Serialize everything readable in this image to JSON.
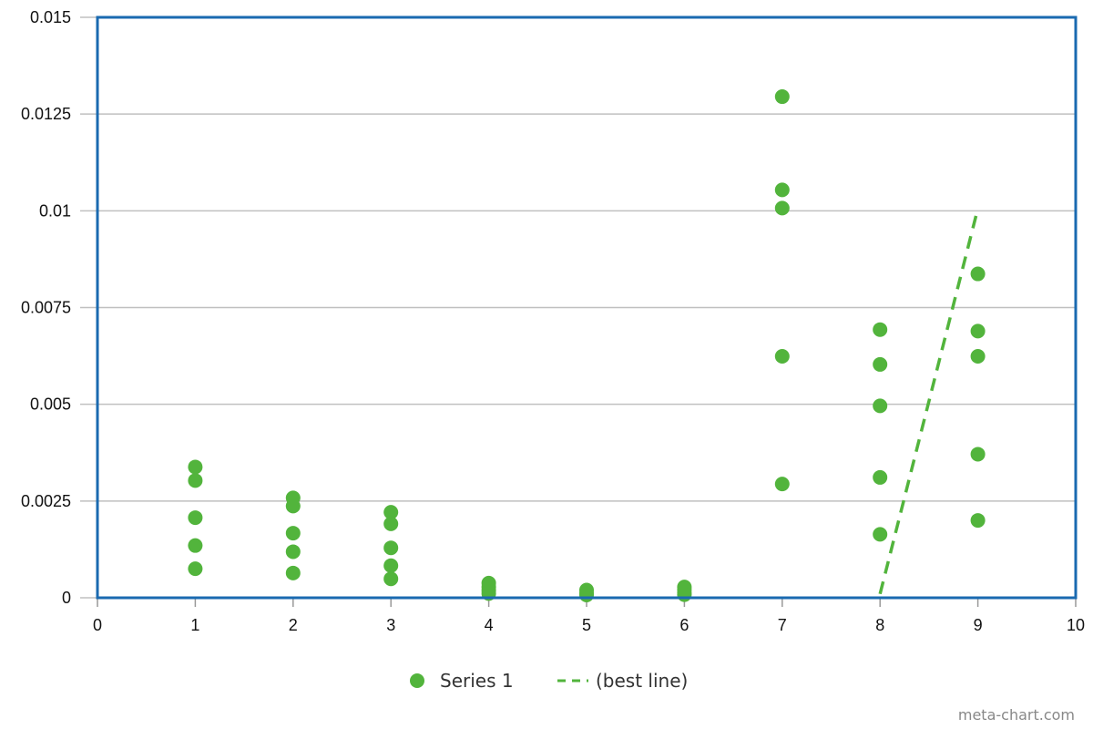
{
  "chart_data": {
    "type": "scatter",
    "title": "",
    "xlabel": "",
    "ylabel": "",
    "xlim": [
      0,
      10
    ],
    "ylim": [
      0,
      0.015
    ],
    "x_ticks": [
      0,
      1,
      2,
      3,
      4,
      5,
      6,
      7,
      8,
      9,
      10
    ],
    "x_tick_labels": [
      "0",
      "1",
      "2",
      "3",
      "4",
      "5",
      "6",
      "7",
      "8",
      "9",
      "10"
    ],
    "y_ticks": [
      0,
      0.0025,
      0.005,
      0.0075,
      0.01,
      0.0125,
      0.015
    ],
    "y_tick_labels": [
      "0",
      "0.0025",
      "0.005",
      "0.0075",
      "0.01",
      "0.0125",
      "0.015"
    ],
    "grid": true,
    "legend_position": "bottom-center",
    "series": [
      {
        "name": "Series 1",
        "kind": "scatter",
        "color": "#52b43c",
        "points": [
          [
            1,
            0.00338
          ],
          [
            1,
            0.00303
          ],
          [
            1,
            0.00207
          ],
          [
            1,
            0.00135
          ],
          [
            1,
            0.00075
          ],
          [
            2,
            0.00258
          ],
          [
            2,
            0.00237
          ],
          [
            2,
            0.00167
          ],
          [
            2,
            0.00119
          ],
          [
            2,
            0.00064
          ],
          [
            3,
            0.00221
          ],
          [
            3,
            0.00191
          ],
          [
            3,
            0.00129
          ],
          [
            3,
            0.00083
          ],
          [
            3,
            0.00049
          ],
          [
            4,
            0.00038
          ],
          [
            4,
            0.00028
          ],
          [
            4,
            0.00019
          ],
          [
            4,
            0.00011
          ],
          [
            5,
            0.0002
          ],
          [
            5,
            0.00012
          ],
          [
            5,
            7e-05
          ],
          [
            6,
            0.00028
          ],
          [
            6,
            0.00021
          ],
          [
            6,
            0.00013
          ],
          [
            6,
            8e-05
          ],
          [
            7,
            0.01295
          ],
          [
            7,
            0.01054
          ],
          [
            7,
            0.01007
          ],
          [
            7,
            0.00624
          ],
          [
            7,
            0.00294
          ],
          [
            8,
            0.00693
          ],
          [
            8,
            0.00603
          ],
          [
            8,
            0.00496
          ],
          [
            8,
            0.00311
          ],
          [
            8,
            0.00164
          ],
          [
            9,
            0.00837
          ],
          [
            9,
            0.00689
          ],
          [
            9,
            0.00624
          ],
          [
            9,
            0.00371
          ],
          [
            9,
            0.002
          ]
        ]
      },
      {
        "name": "(best line)",
        "kind": "line",
        "style": "dashed",
        "color": "#52b43c",
        "points": [
          [
            8,
            0.0001
          ],
          [
            9,
            0.01006
          ]
        ]
      }
    ]
  },
  "credit": "meta-chart.com",
  "colors": {
    "plot_border": "#1a6ab0",
    "grid": "#c0c0c0",
    "axis": "#999999"
  }
}
